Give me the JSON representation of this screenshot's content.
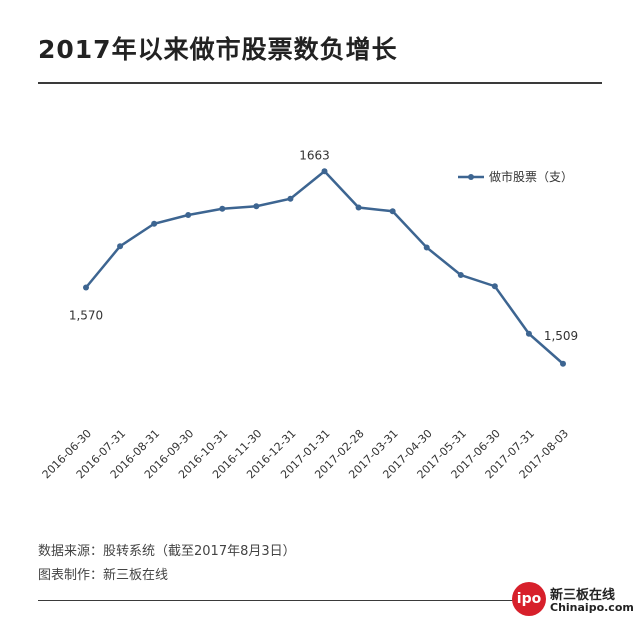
{
  "title": "2017年以来做市股票数负增长",
  "source_line": "数据来源：股转系统（截至2017年8月3日）",
  "credit_line": "图表制作：新三板在线",
  "logo": {
    "mark": "ipo",
    "cn": "新三板在线",
    "en": "Chinaipo.com"
  },
  "colors": {
    "series": "#3d6591",
    "accent": "#d7202b"
  },
  "chart_data": {
    "type": "line",
    "title": "2017年以来做市股票数负增长",
    "categories": [
      "2016-06-30",
      "2016-07-31",
      "2016-08-31",
      "2016-09-30",
      "2016-10-31",
      "2016-11-30",
      "2016-12-31",
      "2017-01-31",
      "2017-02-28",
      "2017-03-31",
      "2017-04-30",
      "2017-05-31",
      "2017-06-30",
      "2017-07-31",
      "2017-08-03"
    ],
    "series": [
      {
        "name": "做市股票（支）",
        "values": [
          1570,
          1603,
          1621,
          1628,
          1633,
          1635,
          1641,
          1663,
          1634,
          1631,
          1602,
          1580,
          1571,
          1533,
          1509
        ]
      }
    ],
    "data_labels": [
      {
        "index": 0,
        "text": "1,570"
      },
      {
        "index": 7,
        "text": "1663"
      },
      {
        "index": 14,
        "text": "1,509"
      }
    ],
    "ylim": [
      1480,
      1720
    ],
    "grid": false,
    "legend": "top-right"
  }
}
